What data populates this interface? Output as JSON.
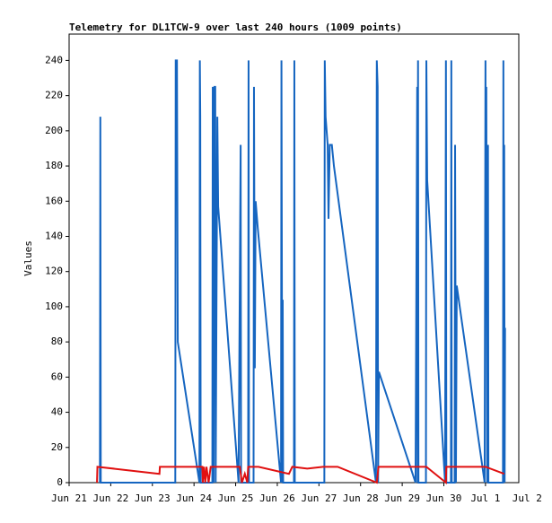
{
  "chart_data": {
    "type": "line",
    "title": "Telemetry for DL1TCW-9 over last 240 hours (1009 points)",
    "ylabel": "Values",
    "xlim": [
      0,
      10.8
    ],
    "ylim": [
      0,
      255
    ],
    "xticks": [
      {
        "value": 0,
        "label": "Jun 21"
      },
      {
        "value": 1,
        "label": "Jun 22"
      },
      {
        "value": 2,
        "label": "Jun 23"
      },
      {
        "value": 3,
        "label": "Jun 24"
      },
      {
        "value": 4,
        "label": "Jun 25"
      },
      {
        "value": 5,
        "label": "Jun 26"
      },
      {
        "value": 6,
        "label": "Jun 27"
      },
      {
        "value": 7,
        "label": "Jun 28"
      },
      {
        "value": 8,
        "label": "Jun 29"
      },
      {
        "value": 9,
        "label": "Jun 30"
      },
      {
        "value": 10,
        "label": "Jul 1"
      },
      {
        "value": 11,
        "label": "Jul 2"
      }
    ],
    "yticks": [
      0,
      20,
      40,
      60,
      80,
      100,
      120,
      140,
      160,
      180,
      200,
      220,
      240
    ],
    "series": [
      {
        "color": "#1565c0",
        "x": [
          0.74,
          0.75,
          0.76,
          2.55,
          2.56,
          2.59,
          2.61,
          3.13,
          3.14,
          3.15,
          3.16,
          3.44,
          3.45,
          3.47,
          3.49,
          3.51,
          3.52,
          3.56,
          3.58,
          4.07,
          4.12,
          4.13,
          4.3,
          4.31,
          4.32,
          4.43,
          4.44,
          4.46,
          4.48,
          4.53,
          5.09,
          5.1,
          5.12,
          5.13,
          5.14,
          5.4,
          5.41,
          5.42,
          6.13,
          6.14,
          6.16,
          6.21,
          6.23,
          6.26,
          6.31,
          6.36,
          7.37,
          7.39,
          7.41,
          7.42,
          7.44,
          8.32,
          8.36,
          8.37,
          8.38,
          8.39,
          8.57,
          8.58,
          8.6,
          9.03,
          9.05,
          9.06,
          9.17,
          9.18,
          9.19,
          9.26,
          9.27,
          9.29,
          9.31,
          9.98,
          10,
          10.01,
          10.02,
          10.04,
          10.06,
          10.07,
          10.42,
          10.43,
          10.44,
          10.45,
          10.46,
          10.47
        ],
        "values": [
          0,
          208,
          0,
          0,
          240,
          240,
          80,
          0,
          240,
          208,
          0,
          0,
          225,
          0,
          225,
          225,
          0,
          208,
          157,
          0,
          192,
          0,
          0,
          240,
          0,
          0,
          225,
          65,
          160,
          145,
          0,
          240,
          0,
          104,
          0,
          0,
          240,
          0,
          0,
          240,
          208,
          192,
          150,
          192,
          192,
          180,
          0,
          240,
          225,
          0,
          63,
          0,
          225,
          0,
          240,
          0,
          0,
          240,
          172,
          0,
          240,
          0,
          0,
          240,
          0,
          0,
          192,
          0,
          112,
          0,
          240,
          112,
          225,
          0,
          192,
          0,
          0,
          240,
          0,
          192,
          0,
          88
        ]
      },
      {
        "color": "#e01010",
        "x": [
          0.67,
          0.68,
          2.17,
          2.18,
          3.2,
          3.21,
          3.24,
          3.27,
          3.3,
          3.35,
          3.4,
          4.1,
          4.15,
          4.22,
          4.28,
          4.3,
          4.55,
          5.28,
          5.36,
          5.72,
          6.1,
          6.45,
          7.39,
          7.43,
          8.58,
          9.05,
          9.06,
          10,
          10.45
        ],
        "values": [
          0,
          9,
          5,
          9,
          9,
          0,
          9,
          0,
          9,
          0,
          9,
          9,
          0,
          5,
          0,
          9,
          9,
          5,
          9,
          8,
          9,
          9,
          0,
          9,
          9,
          0,
          9,
          9,
          5
        ]
      }
    ]
  }
}
